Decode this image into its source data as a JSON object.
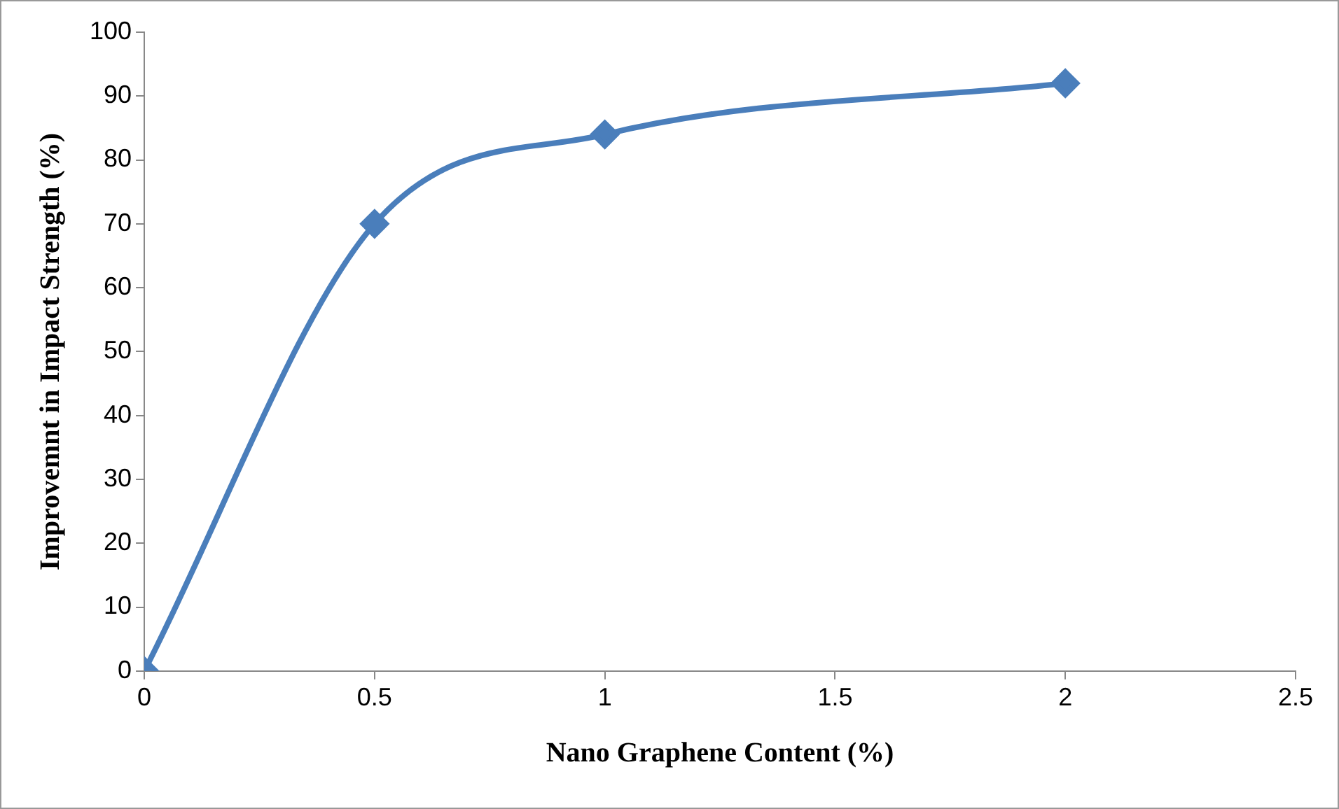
{
  "chart_data": {
    "type": "line",
    "xlabel": "Nano Graphene Content (%)",
    "ylabel": "Improvemnt in Impact Strength (%)",
    "x": [
      0,
      0.5,
      1,
      2
    ],
    "series": [
      {
        "color": "#4a7ebb",
        "values": [
          0,
          70,
          84,
          92
        ]
      }
    ],
    "xlim": [
      0,
      2.5
    ],
    "xticks": [
      0,
      0.5,
      1,
      1.5,
      2,
      2.5
    ],
    "ylim": [
      0,
      100
    ],
    "yticks": [
      0,
      10,
      20,
      30,
      40,
      50,
      60,
      70,
      80,
      90,
      100
    ],
    "grid": false,
    "legend": false,
    "marker": "diamond",
    "line_style": "solid"
  }
}
